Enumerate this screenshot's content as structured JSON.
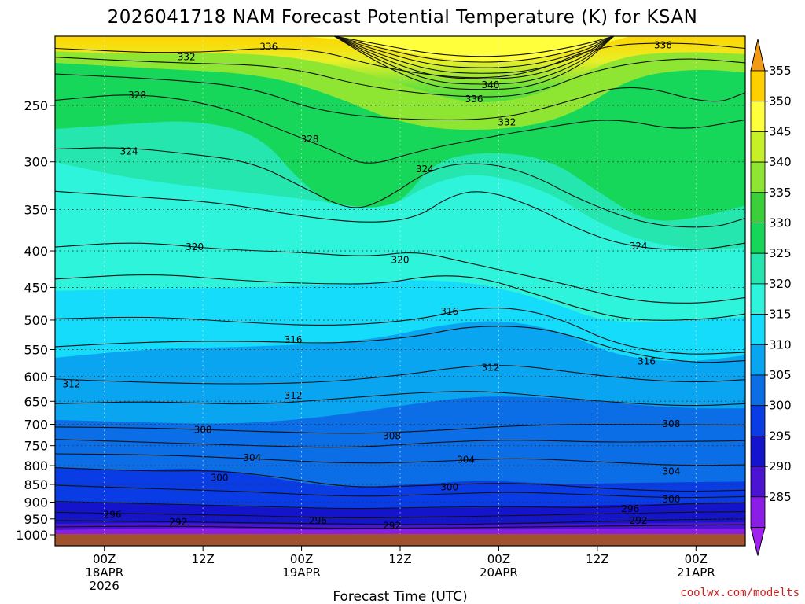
{
  "chart_data": {
    "type": "heatmap",
    "title": "2026041718 NAM Forecast Potential Temperature (K) for KSAN",
    "xlabel": "Forecast Time (UTC)",
    "ylabel": "",
    "y_scale": "log-pressure",
    "y_range_hpa": [
      1000,
      200
    ],
    "y_ticks": [
      "250",
      "300",
      "350",
      "400",
      "450",
      "500",
      "550",
      "600",
      "650",
      "700",
      "750",
      "800",
      "850",
      "900",
      "950",
      "1000"
    ],
    "x_range_hours": [
      0,
      84
    ],
    "x_ticks": [
      {
        "hour": 6,
        "line1": "00Z",
        "line2": "18APR",
        "line3": "2026"
      },
      {
        "hour": 18,
        "line1": "12Z",
        "line2": "",
        "line3": ""
      },
      {
        "hour": 30,
        "line1": "00Z",
        "line2": "19APR",
        "line3": ""
      },
      {
        "hour": 42,
        "line1": "12Z",
        "line2": "",
        "line3": ""
      },
      {
        "hour": 54,
        "line1": "00Z",
        "line2": "20APR",
        "line3": ""
      },
      {
        "hour": 66,
        "line1": "12Z",
        "line2": "",
        "line3": ""
      },
      {
        "hour": 78,
        "line1": "00Z",
        "line2": "21APR",
        "line3": ""
      }
    ],
    "colorbar": {
      "levels": [
        "355",
        "350",
        "345",
        "340",
        "335",
        "330",
        "325",
        "320",
        "315",
        "310",
        "305",
        "300",
        "295",
        "290",
        "285"
      ],
      "colors": [
        "#ffd000",
        "#ffff3c",
        "#c8f028",
        "#8ee632",
        "#3ccf3c",
        "#16d75a",
        "#24e6ae",
        "#2ef4dc",
        "#14dcfa",
        "#0aa5f0",
        "#0c6ee6",
        "#0a3ce6",
        "#1414cd",
        "#4b14d2",
        "#8a1ee6"
      ],
      "over_color": "#f39a14",
      "under_color": "#a020ef"
    },
    "contour_labels": [
      {
        "value": "336",
        "hour": 26,
        "hpa": 207
      },
      {
        "value": "332",
        "hour": 16,
        "hpa": 214
      },
      {
        "value": "336",
        "hour": 74,
        "hpa": 206
      },
      {
        "value": "340",
        "hour": 53,
        "hpa": 234
      },
      {
        "value": "336",
        "hour": 51,
        "hpa": 245
      },
      {
        "value": "332",
        "hour": 55,
        "hpa": 264
      },
      {
        "value": "328",
        "hour": 10,
        "hpa": 242
      },
      {
        "value": "328",
        "hour": 31,
        "hpa": 279
      },
      {
        "value": "324",
        "hour": 9,
        "hpa": 290
      },
      {
        "value": "324",
        "hour": 45,
        "hpa": 307
      },
      {
        "value": "324",
        "hour": 71,
        "hpa": 394
      },
      {
        "value": "320",
        "hour": 17,
        "hpa": 395
      },
      {
        "value": "320",
        "hour": 42,
        "hpa": 412
      },
      {
        "value": "316",
        "hour": 48,
        "hpa": 486
      },
      {
        "value": "316",
        "hour": 29,
        "hpa": 533
      },
      {
        "value": "316",
        "hour": 72,
        "hpa": 571
      },
      {
        "value": "312",
        "hour": 53,
        "hpa": 583
      },
      {
        "value": "312",
        "hour": 2,
        "hpa": 615
      },
      {
        "value": "312",
        "hour": 29,
        "hpa": 638
      },
      {
        "value": "308",
        "hour": 18,
        "hpa": 713
      },
      {
        "value": "308",
        "hour": 41,
        "hpa": 727
      },
      {
        "value": "308",
        "hour": 75,
        "hpa": 699
      },
      {
        "value": "304",
        "hour": 24,
        "hpa": 780
      },
      {
        "value": "304",
        "hour": 50,
        "hpa": 785
      },
      {
        "value": "304",
        "hour": 75,
        "hpa": 815
      },
      {
        "value": "300",
        "hour": 20,
        "hpa": 832
      },
      {
        "value": "300",
        "hour": 48,
        "hpa": 858
      },
      {
        "value": "300",
        "hour": 75,
        "hpa": 892
      },
      {
        "value": "296",
        "hour": 7,
        "hpa": 937
      },
      {
        "value": "296",
        "hour": 32,
        "hpa": 955
      },
      {
        "value": "296",
        "hour": 70,
        "hpa": 920
      },
      {
        "value": "292",
        "hour": 15,
        "hpa": 960
      },
      {
        "value": "292",
        "hour": 41,
        "hpa": 971
      },
      {
        "value": "292",
        "hour": 71,
        "hpa": 955
      }
    ],
    "ground_color": "#a0522d",
    "grid": true
  },
  "credit": "coolwx.com/modelts"
}
